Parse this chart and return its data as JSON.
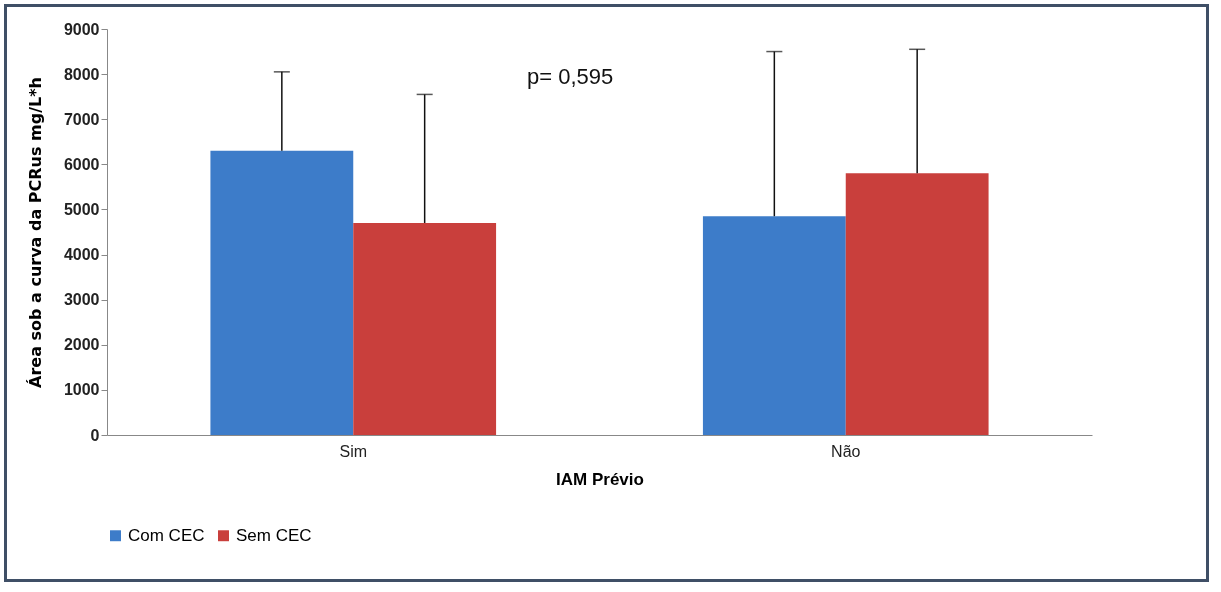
{
  "chart_data": {
    "type": "bar",
    "xlabel": "IAM Prévio",
    "ylabel": "Área sob a curva da PCRus mg/L*h",
    "categories": [
      "Sim",
      "Não"
    ],
    "series": [
      {
        "name": "Com CEC",
        "color": "#3d7cc9",
        "values": [
          6300,
          4850
        ],
        "errors": [
          [
            6300,
            8050
          ],
          [
            4850,
            8500
          ]
        ]
      },
      {
        "name": "Sem CEC",
        "color": "#c93f3c",
        "values": [
          4700,
          5800
        ],
        "errors": [
          [
            4700,
            7550
          ],
          [
            5800,
            8550
          ]
        ]
      }
    ],
    "ylim": [
      0,
      9000
    ],
    "yticks": [
      0,
      1000,
      2000,
      3000,
      4000,
      5000,
      6000,
      7000,
      8000,
      9000
    ],
    "grid": false,
    "legend": "bottom",
    "annotations": [
      "p= 0,595"
    ]
  }
}
